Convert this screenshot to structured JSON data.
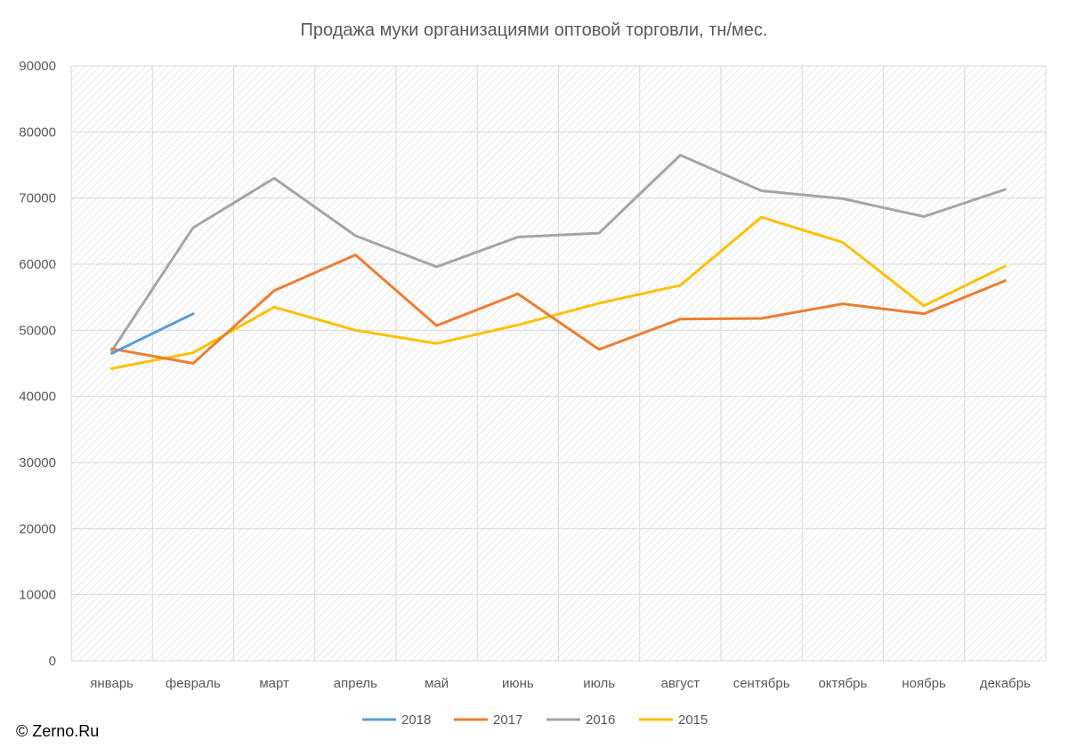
{
  "chart_data": {
    "type": "line",
    "title": "Продажа муки организациями оптовой торговли, тн/мес.",
    "categories": [
      "январь",
      "февраль",
      "март",
      "апрель",
      "май",
      "июнь",
      "июль",
      "август",
      "сентябрь",
      "октябрь",
      "ноябрь",
      "декабрь"
    ],
    "ylim": [
      0,
      90000
    ],
    "yticks": [
      0,
      10000,
      20000,
      30000,
      40000,
      50000,
      60000,
      70000,
      80000,
      90000
    ],
    "ytick_labels": [
      "0",
      "10000",
      "20000",
      "30000",
      "40000",
      "50000",
      "60000",
      "70000",
      "80000",
      "90000"
    ],
    "grid": true,
    "legend_position": "bottom",
    "series": [
      {
        "name": "2018",
        "color": "#5B9BD5",
        "values": [
          46500,
          52500,
          null,
          null,
          null,
          null,
          null,
          null,
          null,
          null,
          null,
          null
        ]
      },
      {
        "name": "2017",
        "color": "#ED7D31",
        "values": [
          47200,
          45000,
          56000,
          61400,
          50700,
          55500,
          47100,
          51700,
          51800,
          54000,
          52500,
          57500
        ]
      },
      {
        "name": "2016",
        "color": "#A5A5A5",
        "values": [
          46900,
          65500,
          73000,
          64300,
          59600,
          64100,
          64700,
          76500,
          71100,
          69900,
          67200,
          71300
        ]
      },
      {
        "name": "2015",
        "color": "#FFC000",
        "values": [
          44200,
          46600,
          53500,
          50000,
          48000,
          50800,
          54100,
          56800,
          67100,
          63300,
          53700,
          59700
        ]
      }
    ]
  },
  "watermark": "© Zerno.Ru"
}
